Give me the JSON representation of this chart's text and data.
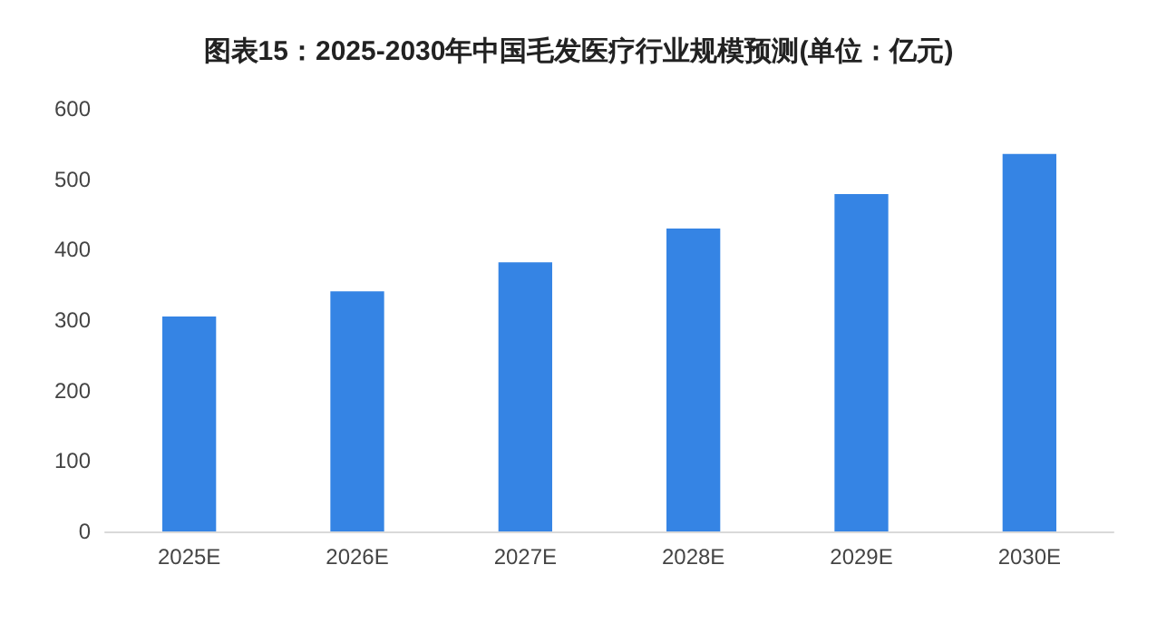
{
  "chart_data": {
    "type": "bar",
    "title": "图表15：2025-2030年中国毛发医疗行业规模预测(单位：亿元)",
    "categories": [
      "2025E",
      "2026E",
      "2027E",
      "2028E",
      "2029E",
      "2030E"
    ],
    "values": [
      305,
      341,
      382,
      430,
      479,
      536
    ],
    "color": "#3584e4",
    "ylim": [
      0,
      600
    ],
    "yticks": [
      0,
      100,
      200,
      300,
      400,
      500,
      600
    ],
    "grid": false
  }
}
